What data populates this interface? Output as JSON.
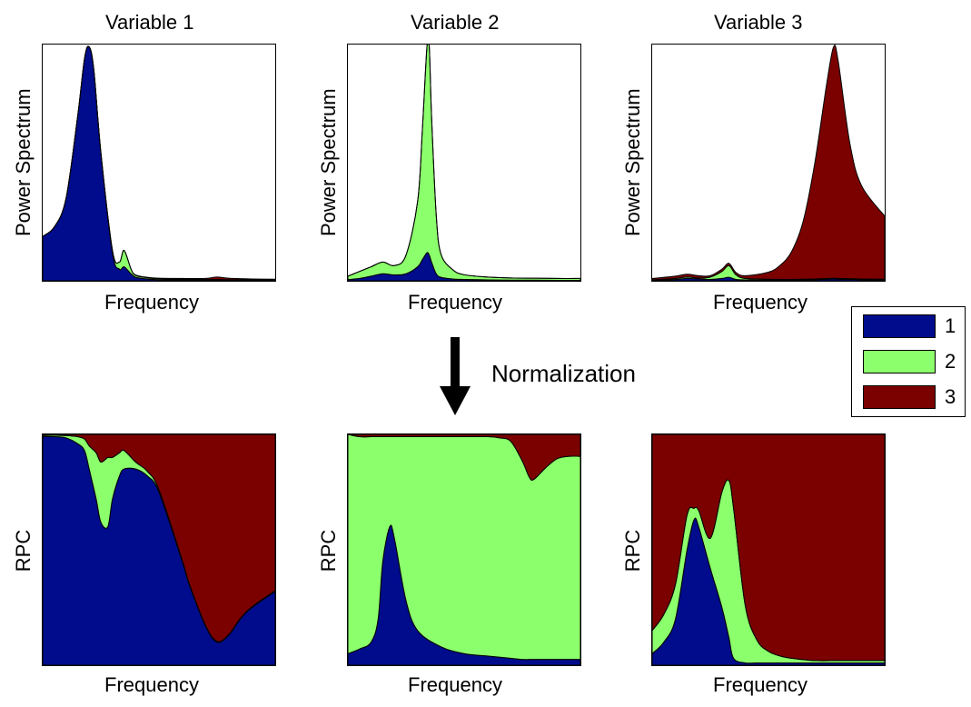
{
  "legend": {
    "items": [
      {
        "label": "1",
        "color": "#000c8c"
      },
      {
        "label": "2",
        "color": "#8cff6c"
      },
      {
        "label": "3",
        "color": "#7b0000"
      }
    ]
  },
  "annotation": {
    "text": "Normalization"
  },
  "chart_data": [
    {
      "type": "area",
      "title": "Variable 1",
      "xlabel": "Frequency",
      "ylabel": "Power Spectrum",
      "stacked": true,
      "x": [
        0,
        0.05,
        0.1,
        0.15,
        0.18,
        0.2,
        0.22,
        0.25,
        0.3,
        0.33,
        0.35,
        0.38,
        0.4,
        0.45,
        0.5,
        0.6,
        0.7,
        0.75,
        0.8,
        0.9,
        1.0
      ],
      "series": [
        {
          "name": "1",
          "values": [
            0.19,
            0.23,
            0.35,
            0.7,
            0.95,
            1.0,
            0.9,
            0.55,
            0.12,
            0.05,
            0.06,
            0.03,
            0.015,
            0.008,
            0.005,
            0.004,
            0.003,
            0.003,
            0.002,
            0.002,
            0.002
          ]
        },
        {
          "name": "2",
          "values": [
            0,
            0,
            0,
            0,
            0,
            0,
            0,
            0,
            0.01,
            0.03,
            0.07,
            0.02,
            0.008,
            0.005,
            0.004,
            0.003,
            0.003,
            0.003,
            0.003,
            0.003,
            0.003
          ]
        },
        {
          "name": "3",
          "values": [
            0,
            0,
            0,
            0,
            0,
            0,
            0,
            0,
            0,
            0,
            0,
            0,
            0.002,
            0.002,
            0.002,
            0.003,
            0.004,
            0.01,
            0.006,
            0.003,
            0.002
          ]
        }
      ]
    },
    {
      "type": "area",
      "title": "Variable 2",
      "xlabel": "Frequency",
      "ylabel": "Power Spectrum",
      "stacked": true,
      "x": [
        0,
        0.05,
        0.1,
        0.15,
        0.2,
        0.25,
        0.3,
        0.32,
        0.34,
        0.35,
        0.36,
        0.38,
        0.4,
        0.45,
        0.5,
        0.6,
        0.7,
        0.8,
        0.9,
        1.0
      ],
      "series": [
        {
          "name": "1",
          "values": [
            0.005,
            0.01,
            0.02,
            0.03,
            0.025,
            0.03,
            0.06,
            0.09,
            0.12,
            0.11,
            0.08,
            0.03,
            0.015,
            0.008,
            0.006,
            0.004,
            0.003,
            0.003,
            0.002,
            0.002
          ]
        },
        {
          "name": "2",
          "values": [
            0.015,
            0.03,
            0.04,
            0.05,
            0.04,
            0.08,
            0.28,
            0.55,
            0.88,
            0.89,
            0.62,
            0.25,
            0.1,
            0.04,
            0.02,
            0.012,
            0.009,
            0.008,
            0.008,
            0.008
          ]
        },
        {
          "name": "3",
          "values": [
            0,
            0,
            0,
            0,
            0,
            0,
            0,
            0,
            0,
            0,
            0,
            0,
            0,
            0,
            0,
            0,
            0,
            0,
            0,
            0
          ]
        }
      ]
    },
    {
      "type": "area",
      "title": "Variable 3",
      "xlabel": "Frequency",
      "ylabel": "Power Spectrum",
      "stacked": true,
      "x": [
        0,
        0.1,
        0.15,
        0.2,
        0.25,
        0.3,
        0.33,
        0.36,
        0.4,
        0.5,
        0.55,
        0.6,
        0.65,
        0.7,
        0.75,
        0.78,
        0.8,
        0.85,
        0.9,
        1.0
      ],
      "series": [
        {
          "name": "1",
          "values": [
            0.002,
            0.006,
            0.01,
            0.008,
            0.006,
            0.01,
            0.015,
            0.006,
            0.004,
            0.003,
            0.003,
            0.003,
            0.004,
            0.005,
            0.007,
            0.008,
            0.007,
            0.006,
            0.005,
            0.004
          ]
        },
        {
          "name": "2",
          "values": [
            0.002,
            0.004,
            0.006,
            0.004,
            0.01,
            0.03,
            0.05,
            0.02,
            0.006,
            0.004,
            0.003,
            0.003,
            0.003,
            0.003,
            0.003,
            0.003,
            0.003,
            0.003,
            0.003,
            0.003
          ]
        },
        {
          "name": "3",
          "values": [
            0.006,
            0.01,
            0.012,
            0.01,
            0.006,
            0.01,
            0.01,
            0.01,
            0.012,
            0.03,
            0.06,
            0.12,
            0.25,
            0.5,
            0.83,
            0.99,
            0.93,
            0.58,
            0.4,
            0.27
          ]
        }
      ]
    },
    {
      "type": "area",
      "xlabel": "Frequency",
      "ylabel": "RPC",
      "stacked": true,
      "normalized": true,
      "x": [
        0,
        0.05,
        0.1,
        0.15,
        0.18,
        0.2,
        0.23,
        0.25,
        0.28,
        0.3,
        0.33,
        0.35,
        0.4,
        0.45,
        0.5,
        0.6,
        0.63,
        0.7,
        0.75,
        0.8,
        0.85,
        0.9,
        1.0
      ],
      "series": [
        {
          "name": "1",
          "values": [
            0.99,
            0.99,
            0.985,
            0.96,
            0.93,
            0.85,
            0.72,
            0.62,
            0.6,
            0.72,
            0.82,
            0.85,
            0.85,
            0.82,
            0.75,
            0.45,
            0.35,
            0.17,
            0.1,
            0.13,
            0.2,
            0.25,
            0.32
          ]
        },
        {
          "name": "2",
          "values": [
            0.005,
            0.006,
            0.01,
            0.03,
            0.05,
            0.1,
            0.2,
            0.26,
            0.3,
            0.18,
            0.1,
            0.08,
            0.03,
            0.02,
            0.01,
            0.005,
            0.004,
            0.003,
            0.003,
            0.003,
            0.003,
            0.003,
            0.003
          ]
        },
        {
          "name": "3",
          "values": [
            0.005,
            0.004,
            0.005,
            0.01,
            0.02,
            0.05,
            0.08,
            0.12,
            0.1,
            0.1,
            0.08,
            0.07,
            0.12,
            0.16,
            0.24,
            0.545,
            0.646,
            0.827,
            0.897,
            0.867,
            0.797,
            0.747,
            0.677
          ]
        }
      ]
    },
    {
      "type": "area",
      "xlabel": "Frequency",
      "ylabel": "RPC",
      "stacked": true,
      "normalized": true,
      "x": [
        0,
        0.05,
        0.1,
        0.13,
        0.15,
        0.18,
        0.2,
        0.25,
        0.3,
        0.4,
        0.5,
        0.6,
        0.65,
        0.7,
        0.75,
        0.78,
        0.8,
        0.85,
        0.9,
        0.95,
        1.0
      ],
      "series": [
        {
          "name": "1",
          "values": [
            0.05,
            0.07,
            0.1,
            0.2,
            0.45,
            0.6,
            0.55,
            0.28,
            0.15,
            0.08,
            0.05,
            0.04,
            0.035,
            0.03,
            0.025,
            0.025,
            0.025,
            0.025,
            0.025,
            0.025,
            0.025
          ]
        },
        {
          "name": "2",
          "values": [
            0.95,
            0.92,
            0.89,
            0.79,
            0.54,
            0.39,
            0.44,
            0.71,
            0.84,
            0.91,
            0.94,
            0.95,
            0.95,
            0.94,
            0.86,
            0.79,
            0.78,
            0.83,
            0.87,
            0.88,
            0.88
          ]
        },
        {
          "name": "3",
          "values": [
            0,
            0.01,
            0.01,
            0.01,
            0.01,
            0.01,
            0.01,
            0.01,
            0.01,
            0.01,
            0.01,
            0.01,
            0.015,
            0.03,
            0.115,
            0.185,
            0.195,
            0.145,
            0.105,
            0.095,
            0.095
          ]
        }
      ]
    },
    {
      "type": "area",
      "xlabel": "Frequency",
      "ylabel": "RPC",
      "stacked": true,
      "normalized": true,
      "x": [
        0,
        0.05,
        0.1,
        0.15,
        0.18,
        0.2,
        0.25,
        0.3,
        0.33,
        0.35,
        0.4,
        0.45,
        0.5,
        0.55,
        0.6,
        0.7,
        0.8,
        0.9,
        1.0
      ],
      "series": [
        {
          "name": "1",
          "values": [
            0.05,
            0.1,
            0.2,
            0.5,
            0.63,
            0.6,
            0.42,
            0.25,
            0.12,
            0.03,
            0.01,
            0.01,
            0.01,
            0.01,
            0.01,
            0.01,
            0.01,
            0.01,
            0.01
          ]
        },
        {
          "name": "2",
          "values": [
            0.1,
            0.12,
            0.15,
            0.15,
            0.05,
            0.07,
            0.13,
            0.5,
            0.68,
            0.65,
            0.25,
            0.1,
            0.05,
            0.03,
            0.02,
            0.01,
            0.01,
            0.01,
            0.01
          ]
        },
        {
          "name": "3",
          "values": [
            0.85,
            0.78,
            0.65,
            0.35,
            0.32,
            0.33,
            0.45,
            0.25,
            0.2,
            0.32,
            0.74,
            0.89,
            0.94,
            0.96,
            0.97,
            0.98,
            0.98,
            0.98,
            0.98
          ]
        }
      ]
    }
  ]
}
